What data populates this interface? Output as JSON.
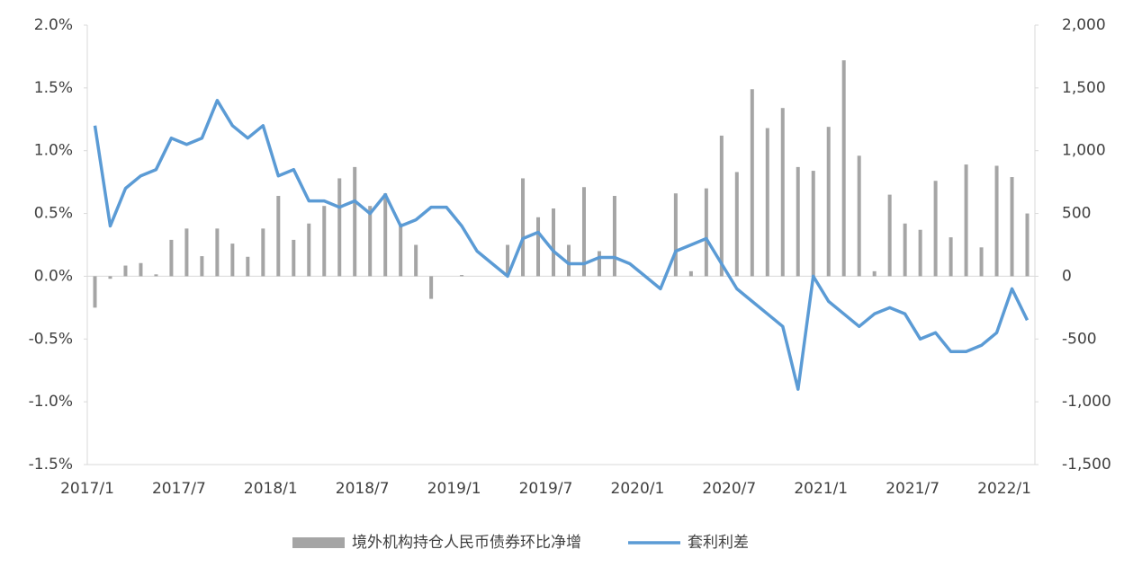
{
  "chart_data": {
    "type": "combo",
    "categories": [
      "2017/1",
      null,
      null,
      null,
      null,
      null,
      "2017/7",
      null,
      null,
      null,
      null,
      null,
      "2018/1",
      null,
      null,
      null,
      null,
      null,
      "2018/7",
      null,
      null,
      null,
      null,
      null,
      "2019/1",
      null,
      null,
      null,
      null,
      null,
      "2019/7",
      null,
      null,
      null,
      null,
      null,
      "2020/1",
      null,
      null,
      null,
      null,
      null,
      "2020/7",
      null,
      null,
      null,
      null,
      null,
      "2021/1",
      null,
      null,
      null,
      null,
      null,
      "2021/7",
      null,
      null,
      null,
      null,
      null,
      "2022/1",
      null
    ],
    "series": [
      {
        "name": "境外机构持仓人民币债券环比净增",
        "type": "bar",
        "axis": "y2",
        "color": "#a5a5a5",
        "values": [
          -250,
          -20,
          85,
          105,
          15,
          290,
          380,
          160,
          380,
          260,
          155,
          380,
          640,
          290,
          420,
          560,
          780,
          870,
          560,
          660,
          420,
          250,
          -180,
          0,
          10,
          0,
          0,
          250,
          780,
          470,
          540,
          250,
          710,
          200,
          640,
          0,
          0,
          0,
          660,
          40,
          700,
          1120,
          830,
          1490,
          1180,
          1340,
          870,
          840,
          1190,
          1720,
          960,
          40,
          650,
          420,
          370,
          760,
          310,
          890,
          230,
          880,
          790,
          500
        ]
      },
      {
        "name": "套利利差",
        "type": "line",
        "color": "#5b9bd5",
        "values": [
          1.2,
          0.4,
          0.7,
          0.8,
          0.85,
          1.1,
          1.05,
          1.1,
          1.4,
          1.2,
          1.1,
          1.2,
          0.8,
          0.85,
          0.6,
          0.6,
          0.55,
          0.6,
          0.5,
          0.65,
          0.4,
          0.45,
          0.55,
          0.55,
          0.4,
          0.2,
          0.1,
          0.0,
          0.3,
          0.35,
          0.2,
          0.1,
          0.1,
          0.15,
          0.15,
          0.1,
          0.0,
          -0.1,
          0.2,
          0.25,
          0.3,
          0.1,
          -0.1,
          -0.2,
          -0.3,
          -0.4,
          -0.9,
          0.0,
          -0.2,
          -0.3,
          -0.4,
          -0.3,
          -0.25,
          -0.3,
          -0.5,
          -0.45,
          -0.6,
          -0.6,
          -0.55,
          -0.45,
          -0.1,
          -0.35
        ]
      }
    ],
    "ylim": [
      -1.5,
      2.0
    ],
    "yticks": [
      {
        "value": 2.0,
        "label": "2.0%"
      },
      {
        "value": 1.5,
        "label": "1.5%"
      },
      {
        "value": 1.0,
        "label": "1.0%"
      },
      {
        "value": 0.5,
        "label": "0.5%"
      },
      {
        "value": 0.0,
        "label": "0.0%"
      },
      {
        "value": -0.5,
        "label": "-0.5%"
      },
      {
        "value": -1.0,
        "label": "-1.0%"
      },
      {
        "value": -1.5,
        "label": "-1.5%"
      }
    ],
    "y2lim": [
      -1500,
      2000
    ],
    "y2ticks": [
      {
        "value": 2000,
        "label": "2,000"
      },
      {
        "value": 1500,
        "label": "1,500"
      },
      {
        "value": 1000,
        "label": "1,000"
      },
      500,
      0,
      -500,
      {
        "value": -1000,
        "label": "-1,000"
      },
      {
        "value": -1500,
        "label": "-1,500"
      }
    ],
    "legend": "bottom"
  }
}
